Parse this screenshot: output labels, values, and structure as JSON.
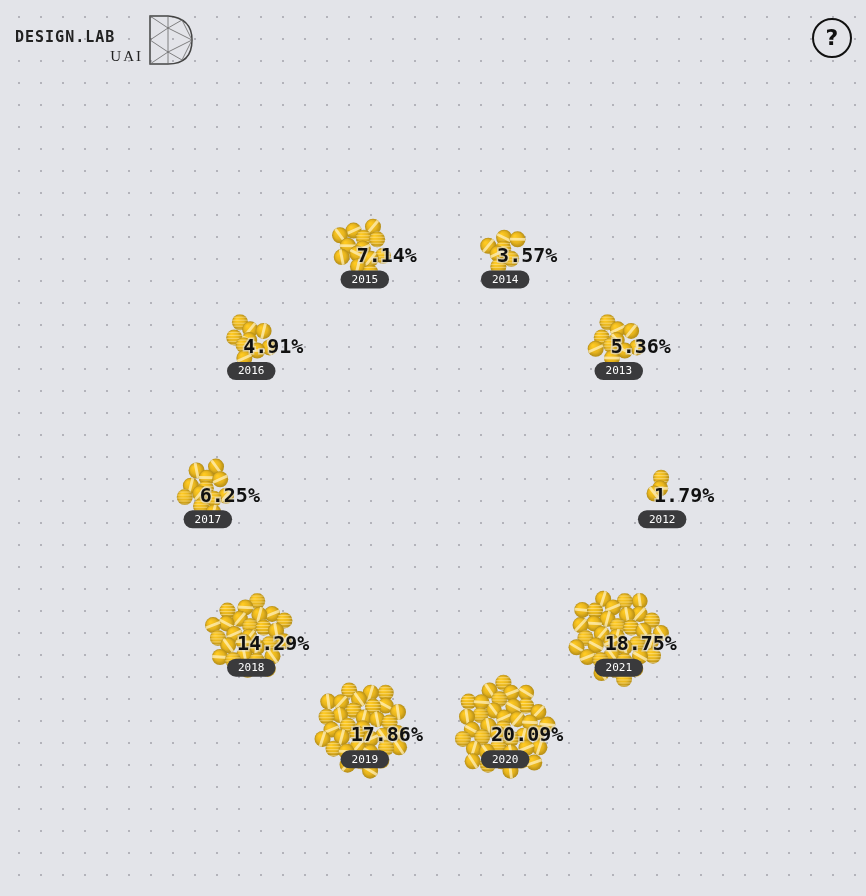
{
  "chart_data": {
    "type": "bubble",
    "categories": [
      "2012",
      "2013",
      "2014",
      "2015",
      "2016",
      "2017",
      "2018",
      "2019",
      "2020",
      "2021"
    ],
    "values": [
      1.79,
      5.36,
      3.57,
      7.14,
      4.91,
      6.25,
      14.29,
      17.86,
      20.09,
      18.75
    ],
    "value_labels": [
      "1.79%",
      "5.36%",
      "3.57%",
      "7.14%",
      "4.91%",
      "6.25%",
      "14.29%",
      "17.86%",
      "20.09%",
      "18.75%"
    ],
    "color": "#e6b41e",
    "data_labels": true,
    "tick_labels": false
  },
  "header": {
    "brand": "DESIGN.LAB",
    "brand_sub": "UAI",
    "help": "?"
  }
}
